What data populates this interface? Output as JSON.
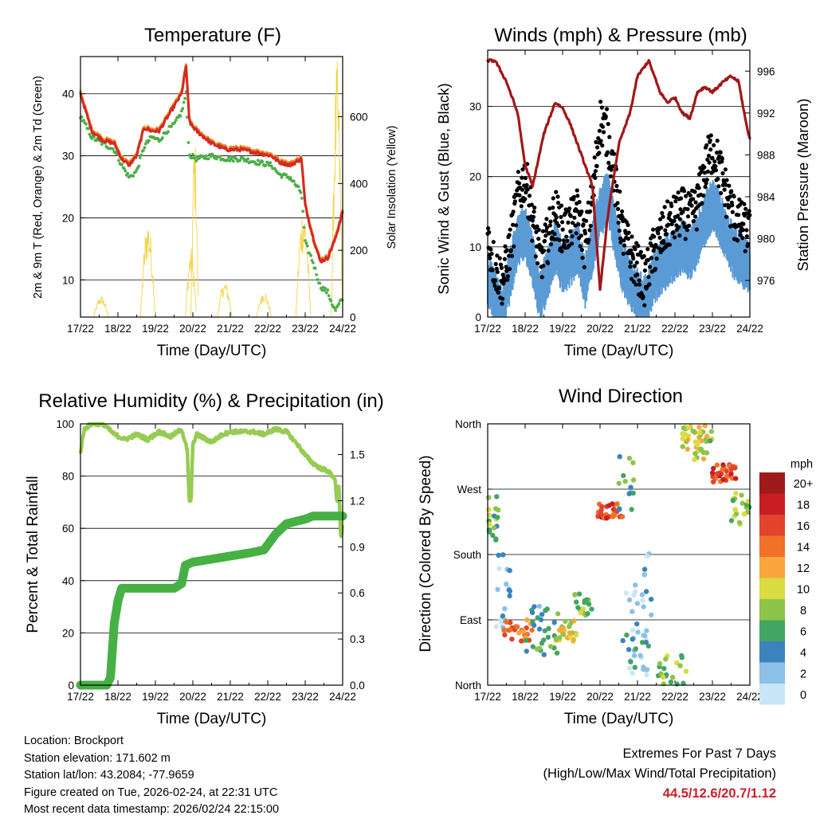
{
  "time_ticks": [
    "17/22",
    "18/22",
    "19/22",
    "20/22",
    "21/22",
    "22/22",
    "23/22",
    "24/22"
  ],
  "time_xlabel": "Time (Day/UTC)",
  "colors": {
    "temp_red": "#d42a22",
    "temp_orange": "#f08a2a",
    "dewpoint_green": "#4cae48",
    "solar_yellow": "#f2d548",
    "gust_black": "#000000",
    "wind_blue": "#5b9bd5",
    "pressure_maroon": "#a01818",
    "rh_lightgreen": "#96cc52",
    "precip_green": "#46b044",
    "extremes_red": "#c9202a"
  },
  "chart_data": [
    {
      "id": "temperature",
      "type": "line",
      "title": "Temperature (F)",
      "xlabel": "Time (Day/UTC)",
      "ylabel": "2m & 9m T (Red, Orange) & 2m Td (Green)",
      "ylabel_right": "Solar Insolation (Yellow)",
      "ylim": [
        4,
        46
      ],
      "yticks": [
        10,
        20,
        30,
        40
      ],
      "ylim_right": [
        0,
        780
      ],
      "yticks_right": [
        0,
        200,
        400,
        600
      ],
      "x_days": [
        0,
        7
      ],
      "series": [
        {
          "name": "2m T",
          "color_key": "temp_red",
          "x": [
            0,
            0.3,
            0.6,
            0.9,
            1.1,
            1.3,
            1.5,
            1.7,
            1.9,
            2.1,
            2.3,
            2.5,
            2.7,
            2.82,
            2.9,
            2.95,
            3.1,
            3.5,
            3.9,
            4.3,
            4.7,
            5.1,
            5.3,
            5.6,
            5.9,
            6.0,
            6.2,
            6.4,
            6.6,
            6.8,
            7.0
          ],
          "y": [
            40,
            34,
            32.5,
            32,
            29.5,
            28.5,
            30,
            34.5,
            34,
            34,
            36,
            38,
            40,
            44.5,
            36,
            35,
            34,
            32,
            31,
            31,
            30.5,
            30,
            29,
            28.5,
            29.5,
            22,
            17,
            13,
            13.5,
            16.5,
            21
          ]
        },
        {
          "name": "2m Td",
          "color_key": "dewpoint_green",
          "x": [
            0,
            0.3,
            0.6,
            0.9,
            1.1,
            1.3,
            1.5,
            1.7,
            1.9,
            2.1,
            2.3,
            2.5,
            2.7,
            2.82,
            2.9,
            2.95,
            3.1,
            3.5,
            3.9,
            4.3,
            4.7,
            5.1,
            5.3,
            5.6,
            5.9,
            6.0,
            6.2,
            6.4,
            6.6,
            6.8,
            7.0
          ],
          "y": [
            36.5,
            33,
            32,
            31,
            28.5,
            26.5,
            27.5,
            31.5,
            33,
            32.5,
            34,
            35,
            37,
            40,
            30,
            30,
            29.5,
            30,
            29.5,
            29.5,
            29,
            28.5,
            27,
            26.5,
            24,
            16,
            13,
            9,
            8,
            5,
            7
          ]
        },
        {
          "name": "Solar Insolation",
          "color_key": "solar_yellow",
          "axis": "right",
          "days": [
            {
              "center": 0.55,
              "width": 0.4,
              "peak": 65
            },
            {
              "center": 1.8,
              "width": 0.4,
              "peak": 300
            },
            {
              "center": 2.95,
              "width": 0.3,
              "peak": 210
            },
            {
              "center": 3.05,
              "width": 0.2,
              "peak": 550
            },
            {
              "center": 3.85,
              "width": 0.4,
              "peak": 110
            },
            {
              "center": 4.9,
              "width": 0.4,
              "peak": 80
            },
            {
              "center": 5.95,
              "width": 0.4,
              "peak": 340
            },
            {
              "center": 6.85,
              "width": 0.3,
              "peak": 770
            }
          ]
        }
      ]
    },
    {
      "id": "winds",
      "type": "scatter",
      "title": "Winds (mph) & Pressure (mb)",
      "xlabel": "Time (Day/UTC)",
      "ylabel": "Sonic Wind & Gust (Blue, Black)",
      "ylabel_right": "Station Pressure (Maroon)",
      "ylim": [
        0,
        38
      ],
      "yticks": [
        0,
        10,
        20,
        30
      ],
      "ylim_right": [
        972.5,
        998
      ],
      "yticks_right": [
        976,
        980,
        984,
        988,
        992,
        996
      ],
      "x_days": [
        0,
        7
      ],
      "series": [
        {
          "name": "Sonic Wind",
          "color_key": "wind_blue",
          "x": [
            0,
            0.2,
            0.4,
            0.6,
            0.8,
            1.0,
            1.2,
            1.4,
            1.6,
            1.8,
            2.0,
            2.2,
            2.4,
            2.6,
            2.8,
            3.0,
            3.2,
            3.4,
            3.6,
            3.8,
            4.0,
            4.2,
            4.4,
            4.6,
            4.8,
            5.0,
            5.2,
            5.4,
            5.6,
            5.8,
            6.0,
            6.2,
            6.4,
            6.6,
            6.8,
            7.0
          ],
          "y": [
            6,
            4,
            2,
            7,
            12,
            13,
            9,
            4,
            7,
            11,
            8,
            9,
            11,
            6,
            11,
            16,
            18,
            13,
            8,
            6,
            4,
            3,
            6,
            8,
            9,
            10,
            11,
            10,
            12,
            15,
            17,
            15,
            12,
            10,
            9,
            8
          ]
        },
        {
          "name": "Gust",
          "color_key": "gust_black",
          "x": [
            0,
            0.2,
            0.4,
            0.6,
            0.8,
            1.0,
            1.2,
            1.4,
            1.6,
            1.8,
            2.0,
            2.2,
            2.4,
            2.6,
            2.8,
            3.0,
            3.2,
            3.4,
            3.6,
            3.8,
            4.0,
            4.2,
            4.4,
            4.6,
            4.8,
            5.0,
            5.2,
            5.4,
            5.6,
            5.8,
            6.0,
            6.2,
            6.4,
            6.6,
            6.8,
            7.0
          ],
          "y": [
            11,
            7,
            5,
            10,
            17,
            20,
            14,
            8,
            11,
            15,
            12,
            13,
            15,
            10,
            17,
            28,
            26,
            19,
            12,
            9,
            7,
            5,
            9,
            11,
            13,
            14,
            15,
            14,
            16,
            21,
            24,
            21,
            17,
            14,
            13,
            12
          ]
        },
        {
          "name": "Station Pressure",
          "color_key": "pressure_maroon",
          "axis": "right",
          "x": [
            0,
            0.2,
            0.5,
            0.8,
            1.0,
            1.2,
            1.5,
            1.8,
            2.0,
            2.2,
            2.5,
            2.8,
            2.9,
            3.0,
            3.2,
            3.5,
            3.8,
            4.0,
            4.3,
            4.6,
            4.8,
            5.0,
            5.2,
            5.4,
            5.6,
            5.8,
            6.0,
            6.3,
            6.5,
            6.7,
            6.9,
            7.0
          ],
          "y": [
            997,
            997,
            995,
            992,
            987,
            985,
            990,
            993,
            992.5,
            991,
            988,
            985,
            980,
            975,
            982,
            989,
            992,
            995.5,
            997,
            994,
            993,
            993.5,
            992,
            991.5,
            994,
            994.5,
            994,
            995,
            995.5,
            995,
            991,
            989.5
          ]
        }
      ]
    },
    {
      "id": "humidity",
      "type": "line",
      "title": "Relative Humidity (%) & Precipitation (in)",
      "xlabel": "Time (Day/UTC)",
      "ylabel": "Percent & Total Rainfall",
      "ylim": [
        0,
        100
      ],
      "yticks": [
        0,
        20,
        40,
        60,
        80,
        100
      ],
      "ylim_right": [
        0,
        1.7
      ],
      "yticks_right": [
        "0.0",
        "0.3",
        "0.6",
        "0.9",
        "1.2",
        "1.5"
      ],
      "x_days": [
        0,
        7
      ],
      "series": [
        {
          "name": "Relative Humidity",
          "color_key": "rh_lightgreen",
          "x": [
            0,
            0.1,
            0.3,
            0.6,
            0.9,
            1.2,
            1.5,
            1.8,
            2.1,
            2.4,
            2.7,
            2.85,
            2.9,
            2.95,
            3.0,
            3.1,
            3.5,
            3.8,
            4.0,
            4.2,
            4.4,
            4.6,
            4.9,
            5.2,
            5.5,
            5.8,
            6.0,
            6.2,
            6.4,
            6.6,
            6.8,
            6.85,
            6.9,
            6.95,
            7.0
          ],
          "y": [
            89,
            98,
            100,
            100,
            96,
            94,
            96,
            94,
            97,
            95,
            98,
            90,
            71,
            70,
            92,
            96,
            93,
            96,
            97,
            97,
            97,
            97,
            96,
            98,
            97,
            92,
            88,
            85,
            83,
            82,
            79,
            69,
            76,
            55,
            62
          ]
        },
        {
          "name": "Total Precipitation",
          "color_key": "precip_green",
          "axis": "right",
          "x": [
            0,
            0.7,
            0.8,
            0.9,
            1.0,
            1.1,
            1.5,
            2.0,
            2.5,
            2.7,
            2.8,
            3.0,
            3.5,
            4.0,
            4.5,
            4.9,
            5.2,
            5.5,
            6.0,
            6.2,
            6.5,
            7.0
          ],
          "y": [
            0,
            0,
            0.05,
            0.4,
            0.55,
            0.63,
            0.63,
            0.63,
            0.63,
            0.66,
            0.78,
            0.8,
            0.82,
            0.84,
            0.86,
            0.88,
            0.98,
            1.05,
            1.08,
            1.1,
            1.1,
            1.1
          ]
        }
      ]
    },
    {
      "id": "direction",
      "type": "scatter",
      "title": "Wind Direction",
      "xlabel": "Time (Day/UTC)",
      "ylabel": "Direction (Colored By Speed)",
      "ylim": [
        0,
        360
      ],
      "ytick_labels": [
        "North",
        "East",
        "South",
        "West",
        "North"
      ],
      "x_days": [
        0,
        7
      ],
      "clusters": [
        {
          "x": [
            0.0,
            0.3
          ],
          "dir": [
            200,
            260
          ],
          "speed": 7,
          "n": 18
        },
        {
          "x": [
            0.2,
            0.6
          ],
          "dir": [
            60,
            180
          ],
          "speed": 2,
          "n": 22
        },
        {
          "x": [
            0.4,
            1.2
          ],
          "dir": [
            60,
            90
          ],
          "speed": 14,
          "n": 30
        },
        {
          "x": [
            1.0,
            1.9
          ],
          "dir": [
            40,
            110
          ],
          "speed": 5,
          "n": 30
        },
        {
          "x": [
            1.8,
            2.4
          ],
          "dir": [
            60,
            90
          ],
          "speed": 10,
          "n": 24
        },
        {
          "x": [
            2.3,
            2.8
          ],
          "dir": [
            90,
            130
          ],
          "speed": 8,
          "n": 18
        },
        {
          "x": [
            2.9,
            3.6
          ],
          "dir": [
            230,
            250
          ],
          "speed": 16,
          "n": 28
        },
        {
          "x": [
            3.5,
            3.9
          ],
          "dir": [
            240,
            320
          ],
          "speed": 6,
          "n": 14
        },
        {
          "x": [
            3.7,
            4.4
          ],
          "dir": [
            10,
            190
          ],
          "speed": 1,
          "n": 30
        },
        {
          "x": [
            3.6,
            4.3
          ],
          "dir": [
            20,
            80
          ],
          "speed": 4,
          "n": 18
        },
        {
          "x": [
            4.5,
            5.3
          ],
          "dir": [
            0,
            55
          ],
          "speed": 7,
          "n": 20
        },
        {
          "x": [
            5.2,
            5.8
          ],
          "dir": [
            320,
            360
          ],
          "speed": 10,
          "n": 26
        },
        {
          "x": [
            5.5,
            6.0
          ],
          "dir": [
            310,
            350
          ],
          "speed": 9,
          "n": 18
        },
        {
          "x": [
            6.0,
            6.7
          ],
          "dir": [
            280,
            305
          ],
          "speed": 16,
          "n": 30
        },
        {
          "x": [
            6.5,
            7.0
          ],
          "dir": [
            220,
            265
          ],
          "speed": 9,
          "n": 20
        }
      ],
      "colorbar": {
        "title": "mph",
        "labels": [
          "20+",
          "18",
          "16",
          "14",
          "12",
          "10",
          "8",
          "6",
          "4",
          "2",
          "0"
        ],
        "colors": [
          "#9e1a1a",
          "#c81e22",
          "#e2432a",
          "#f1702a",
          "#f9a53e",
          "#d8dc40",
          "#8dc44a",
          "#43a563",
          "#3c82bf",
          "#8cc0e6",
          "#c8e6f8"
        ]
      }
    }
  ],
  "station": {
    "location": "Location: Brockport",
    "elevation": "Station elevation: 171.602 m",
    "latlon": "Station lat/lon: 43.2084; -77.9659",
    "created": "Figure created on Tue, 2026-02-24, at 22:31 UTC",
    "latest": "Most recent data timestamp: 2026/02/24 22:15:00"
  },
  "extremes": {
    "title": "Extremes For Past 7 Days",
    "subtitle": "(High/Low/Max Wind/Total Precipitation)",
    "values": "44.5/12.6/20.7/1.12"
  }
}
